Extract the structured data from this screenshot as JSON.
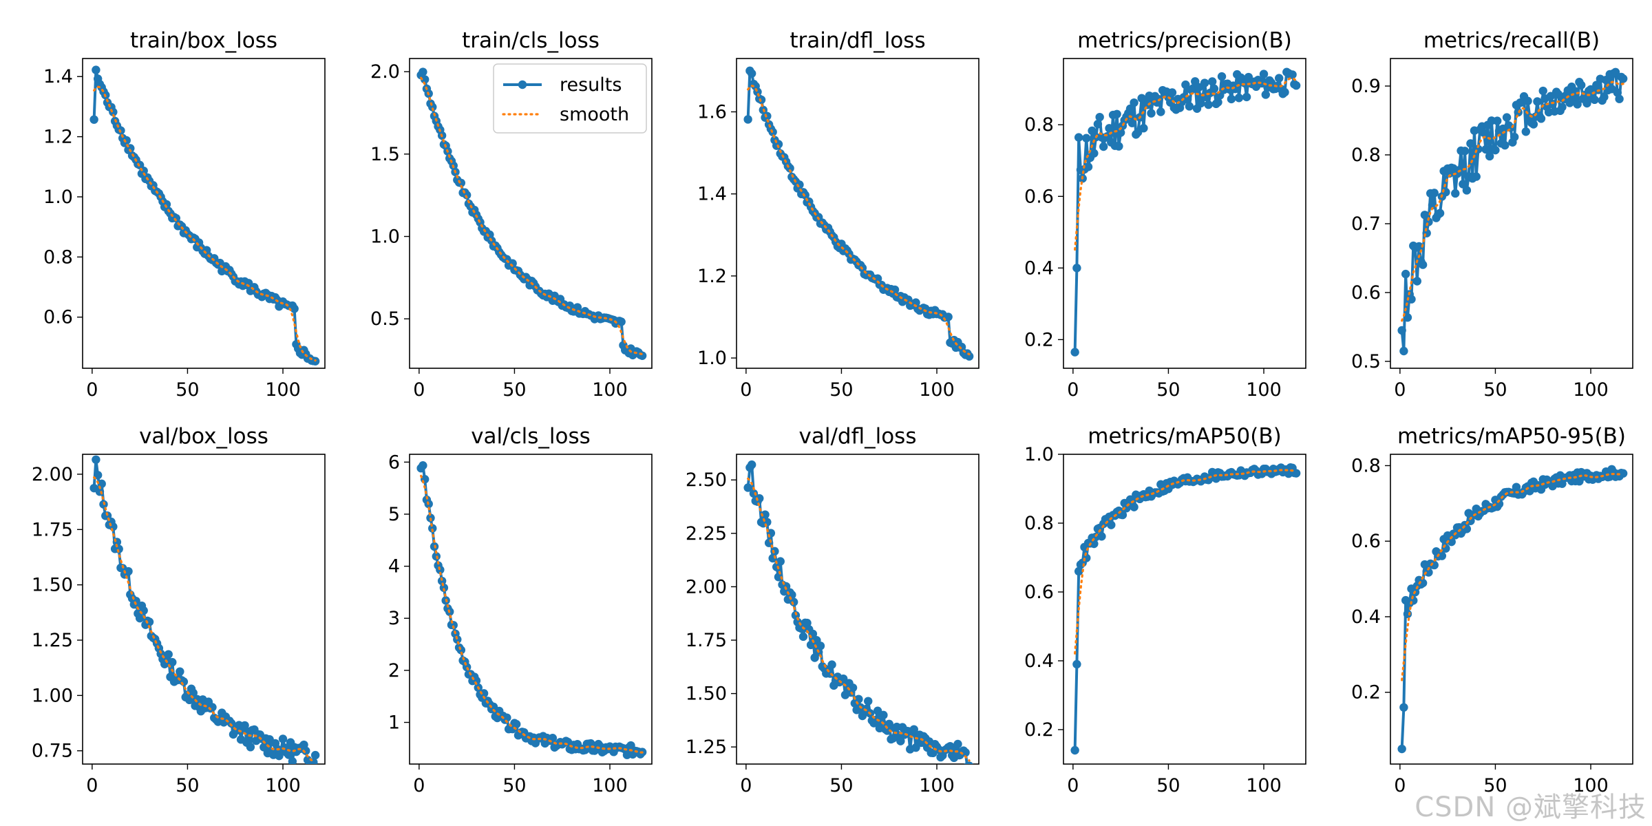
{
  "figure": {
    "watermark": "CSDN @斌擎科技",
    "colors": {
      "results": "#1f77b4",
      "smooth": "#ff7f0e",
      "axis": "#000000"
    }
  },
  "chart_data": [
    {
      "type": "line",
      "title": "train/box_loss",
      "xlim": [
        -5,
        122
      ],
      "ylim": [
        0.43,
        1.46
      ],
      "xticks": [
        0,
        50,
        100
      ],
      "yticks": [
        0.6,
        0.8,
        1.0,
        1.2,
        1.4
      ],
      "ytick_labels": [
        "0.6",
        "0.8",
        "1.0",
        "1.2",
        "1.4"
      ],
      "shape": {
        "kind": "loss",
        "start": 1.26,
        "peak": 1.41,
        "end": 0.595,
        "k": 2.0,
        "drop_at": 107,
        "drop_to": 0.5,
        "final": 0.45,
        "noise": 0.008
      },
      "legend": null
    },
    {
      "type": "line",
      "title": "train/cls_loss",
      "xlim": [
        -5,
        122
      ],
      "ylim": [
        0.2,
        2.08
      ],
      "xticks": [
        0,
        50,
        100
      ],
      "yticks": [
        0.5,
        1.0,
        1.5,
        2.0
      ],
      "ytick_labels": [
        "0.5",
        "1.0",
        "1.5",
        "2.0"
      ],
      "shape": {
        "kind": "loss",
        "start": 1.99,
        "peak": 1.99,
        "end": 0.45,
        "k": 3.2,
        "drop_at": 107,
        "drop_to": 0.32,
        "final": 0.28,
        "noise": 0.008
      },
      "legend": {
        "position": "upper right",
        "entries": [
          "results",
          "smooth"
        ]
      }
    },
    {
      "type": "line",
      "title": "train/dfl_loss",
      "xlim": [
        -5,
        122
      ],
      "ylim": [
        0.975,
        1.73
      ],
      "xticks": [
        0,
        50,
        100
      ],
      "yticks": [
        1.0,
        1.2,
        1.4,
        1.6
      ],
      "ytick_labels": [
        "1.0",
        "1.2",
        "1.4",
        "1.6"
      ],
      "shape": {
        "kind": "loss",
        "start": 1.59,
        "peak": 1.7,
        "end": 1.08,
        "k": 2.4,
        "drop_at": 107,
        "drop_to": 1.045,
        "final": 1.01,
        "noise": 0.006
      },
      "legend": null
    },
    {
      "type": "line",
      "title": "metrics/precision(B)",
      "xlim": [
        -5,
        122
      ],
      "ylim": [
        0.12,
        0.985
      ],
      "xticks": [
        0,
        50,
        100
      ],
      "yticks": [
        0.2,
        0.4,
        0.6,
        0.8
      ],
      "ytick_labels": [
        "0.2",
        "0.4",
        "0.6",
        "0.8"
      ],
      "shape": {
        "kind": "metric",
        "start": 0.165,
        "second": 0.4,
        "mid": 0.7,
        "end": 0.93,
        "k": 3.0,
        "noise": 0.02
      },
      "legend": null
    },
    {
      "type": "line",
      "title": "metrics/recall(B)",
      "xlim": [
        -5,
        122
      ],
      "ylim": [
        0.49,
        0.94
      ],
      "xticks": [
        0,
        50,
        100
      ],
      "yticks": [
        0.5,
        0.6,
        0.7,
        0.8,
        0.9
      ],
      "ytick_labels": [
        "0.5",
        "0.6",
        "0.7",
        "0.8",
        "0.9"
      ],
      "shape": {
        "kind": "metric",
        "start": 0.545,
        "second": 0.515,
        "mid": 0.6,
        "end": 0.915,
        "k": 3.2,
        "noise": 0.014
      },
      "legend": null
    },
    {
      "type": "line",
      "title": "val/box_loss",
      "xlim": [
        -5,
        122
      ],
      "ylim": [
        0.69,
        2.09
      ],
      "xticks": [
        0,
        50,
        100
      ],
      "yticks": [
        0.75,
        1.0,
        1.25,
        1.5,
        1.75,
        2.0
      ],
      "ytick_labels": [
        "0.75",
        "1.00",
        "1.25",
        "1.50",
        "1.75",
        "2.00"
      ],
      "shape": {
        "kind": "loss",
        "start": 1.93,
        "peak": 2.03,
        "end": 0.725,
        "k": 3.2,
        "noise": 0.02
      },
      "legend": null
    },
    {
      "type": "line",
      "title": "val/cls_loss",
      "xlim": [
        -5,
        122
      ],
      "ylim": [
        0.2,
        6.15
      ],
      "xticks": [
        0,
        50,
        100
      ],
      "yticks": [
        1,
        2,
        3,
        4,
        5,
        6
      ],
      "ytick_labels": [
        "1",
        "2",
        "3",
        "4",
        "5",
        "6"
      ],
      "shape": {
        "kind": "loss",
        "start": 5.9,
        "peak": 5.9,
        "end": 0.46,
        "k": 6.0,
        "noise": 0.015
      },
      "legend": null
    },
    {
      "type": "line",
      "title": "val/dfl_loss",
      "xlim": [
        -5,
        122
      ],
      "ylim": [
        1.17,
        2.62
      ],
      "xticks": [
        0,
        50,
        100
      ],
      "yticks": [
        1.25,
        1.5,
        1.75,
        2.0,
        2.25,
        2.5
      ],
      "ytick_labels": [
        "1.25",
        "1.50",
        "1.75",
        "2.00",
        "2.25",
        "2.50"
      ],
      "shape": {
        "kind": "loss",
        "start": 2.49,
        "peak": 2.56,
        "end": 1.2,
        "k": 3.0,
        "noise": 0.022
      },
      "legend": null
    },
    {
      "type": "line",
      "title": "metrics/mAP50(B)",
      "xlim": [
        -5,
        122
      ],
      "ylim": [
        0.1,
        1.0
      ],
      "xticks": [
        0,
        50,
        100
      ],
      "yticks": [
        0.2,
        0.4,
        0.6,
        0.8,
        1.0
      ],
      "ytick_labels": [
        "0.2",
        "0.4",
        "0.6",
        "0.8",
        "1.0"
      ],
      "shape": {
        "kind": "metric",
        "start": 0.14,
        "second": 0.39,
        "mid": 0.68,
        "end": 0.958,
        "k": 4.2,
        "noise": 0.006
      },
      "legend": null
    },
    {
      "type": "line",
      "title": "metrics/mAP50-95(B)",
      "xlim": [
        -5,
        122
      ],
      "ylim": [
        0.01,
        0.83
      ],
      "xticks": [
        0,
        50,
        100
      ],
      "yticks": [
        0.2,
        0.4,
        0.6,
        0.8
      ],
      "ytick_labels": [
        "0.2",
        "0.4",
        "0.6",
        "0.8"
      ],
      "shape": {
        "kind": "metric",
        "start": 0.05,
        "second": 0.16,
        "mid": 0.42,
        "end": 0.795,
        "k": 3.4,
        "noise": 0.007
      },
      "legend": null
    }
  ]
}
